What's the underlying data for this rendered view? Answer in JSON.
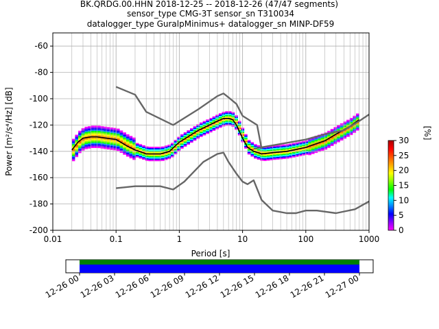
{
  "header": {
    "line1": "BK.QRDG.00.HHN   2018-12-25 -- 2018-12-26  (47/47 segments)",
    "line2": "sensor_type CMG-3T sensor_sn T310034",
    "line3": "datalogger_type GuralpMinimus+ datalogger_sn MINP-DF59"
  },
  "chart_data": [
    {
      "type": "heatmap",
      "title": "BK.QRDG.00.HHN   2018-12-25 -- 2018-12-26  (47/47 segments)",
      "xlabel": "Period [s]",
      "ylabel": "Power [m²/s⁴/Hz] [dB]",
      "x_scale": "log",
      "xlim": [
        0.01,
        1000
      ],
      "ylim": [
        -200,
        -50
      ],
      "x_tick_labels": [
        "0.01",
        "0.1",
        "1",
        "10",
        "100",
        "1000"
      ],
      "y_tick_labels": [
        "-200",
        "-180",
        "-160",
        "-140",
        "-120",
        "-100",
        "-80",
        "-60"
      ],
      "grid": true,
      "colorbar": {
        "label": "[%]",
        "ticks": [
          0,
          5,
          10,
          15,
          20,
          25,
          30
        ],
        "range": [
          0,
          30
        ],
        "colormap": [
          "#ff00ff",
          "#8a00ff",
          "#0000ff",
          "#0088ff",
          "#00ffff",
          "#00ff00",
          "#88ff00",
          "#ffff00",
          "#ffaa00",
          "#ff5500",
          "#ff0000",
          "#aa0000"
        ]
      },
      "series": [
        {
          "name": "",
          "color": "#000000",
          "x": [
            0.02,
            0.025,
            0.03,
            0.04,
            0.05,
            0.07,
            0.1,
            0.15,
            0.2,
            0.3,
            0.5,
            0.7,
            1,
            2,
            3,
            4,
            5,
            6,
            7,
            8,
            10,
            12,
            15,
            20,
            30,
            50,
            100,
            200,
            300,
            500,
            700
          ],
          "y": [
            -139,
            -133,
            -130,
            -129,
            -129,
            -130,
            -131,
            -136,
            -139,
            -142,
            -142,
            -140,
            -133,
            -124,
            -120,
            -117,
            -115,
            -115,
            -116,
            -120,
            -130,
            -137,
            -140,
            -142,
            -141,
            -140,
            -137,
            -132,
            -127,
            -121,
            -116
          ]
        },
        {
          "name": "",
          "color": "#666666",
          "x": [
            0.1,
            0.2,
            0.3,
            0.8,
            2,
            4,
            5,
            6,
            8,
            10,
            17,
            20
          ],
          "y": [
            -91,
            -97,
            -110,
            -120,
            -108,
            -98,
            -96,
            -99,
            -104,
            -113,
            -120,
            -138
          ]
        },
        {
          "name": "",
          "color": "#666666",
          "x": [
            0.1,
            0.2,
            0.5,
            0.8,
            1.2,
            2.4,
            4,
            5,
            6,
            8,
            10,
            12,
            15,
            20,
            30,
            50,
            70,
            100,
            150,
            300,
            600,
            1000
          ],
          "y": [
            -168,
            -166.5,
            -166.5,
            -169,
            -163,
            -148,
            -142,
            -141,
            -148,
            -157,
            -163,
            -165,
            -162,
            -177,
            -185,
            -187,
            -187,
            -185,
            -185,
            -187,
            -184,
            -178
          ]
        },
        {
          "name": "",
          "color": "#666666",
          "x": [
            15,
            100,
            200,
            400,
            700,
            1000
          ],
          "y": [
            -138,
            -131,
            -127,
            -124,
            -117,
            -112
          ]
        }
      ]
    },
    {
      "type": "bar",
      "title": "",
      "x_tick_labels": [
        "12-26 00",
        "12-26 03",
        "12-26 06",
        "12-26 09",
        "12-26 12",
        "12-26 15",
        "12-26 18",
        "12-26 21",
        "12-27 00"
      ],
      "series": [
        {
          "name": "",
          "color": "#008000",
          "span": [
            0,
            24
          ]
        },
        {
          "name": "",
          "color": "#0000ff",
          "span": [
            0,
            24
          ]
        }
      ]
    }
  ]
}
